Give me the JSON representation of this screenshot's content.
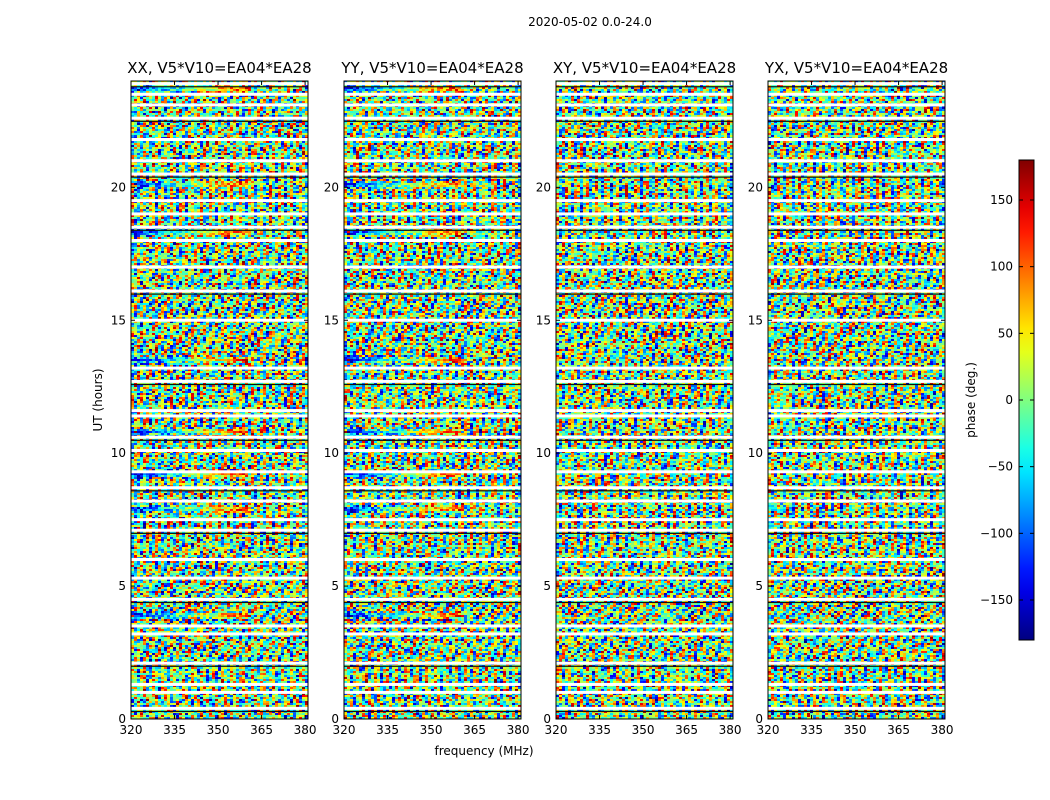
{
  "figure": {
    "suptitle": "2020-05-02 0.0-24.0",
    "xlabel": "frequency (MHz)",
    "ylabel": "UT (hours)"
  },
  "chart_data": {
    "type": "heatmap",
    "title": "2020-05-02 0.0-24.0",
    "xlabel": "frequency (MHz)",
    "ylabel": "UT (hours)",
    "xlim": [
      320,
      381
    ],
    "ylim": [
      0,
      24
    ],
    "x_ticks": [
      320,
      335,
      350,
      365,
      380
    ],
    "y_ticks": [
      0,
      5,
      10,
      15,
      20
    ],
    "panels": [
      {
        "title": "XX, V5*V10=EA04*EA28",
        "polarization": "XX"
      },
      {
        "title": "YY, V5*V10=EA04*EA28",
        "polarization": "YY"
      },
      {
        "title": "XY, V5*V10=EA04*EA28",
        "polarization": "XY"
      },
      {
        "title": "YX, V5*V10=EA04*EA28",
        "polarization": "YX"
      }
    ],
    "flagged_time_gaps_hours": [
      0.4,
      1.0,
      1.3,
      2.1,
      3.2,
      3.5,
      4.5,
      5.3,
      6.0,
      7.1,
      7.5,
      8.2,
      8.7,
      9.3,
      10.1,
      10.6,
      11.4,
      11.6,
      12.7,
      13.2,
      15.0,
      16.1,
      17.0,
      18.0,
      18.5,
      19.0,
      19.5,
      20.5,
      21.0,
      21.8,
      22.6,
      23.1,
      23.5,
      23.9
    ],
    "coherent_phase_bands_hours": [
      3.9,
      7.9,
      9.2,
      10.8,
      13.5,
      18.3,
      20.1,
      23.7
    ],
    "colorbar": {
      "label": "phase (deg.)",
      "range": [
        -180,
        180
      ],
      "ticks": [
        150,
        100,
        50,
        0,
        -50,
        -100,
        -150
      ],
      "colormap": "jet"
    }
  }
}
